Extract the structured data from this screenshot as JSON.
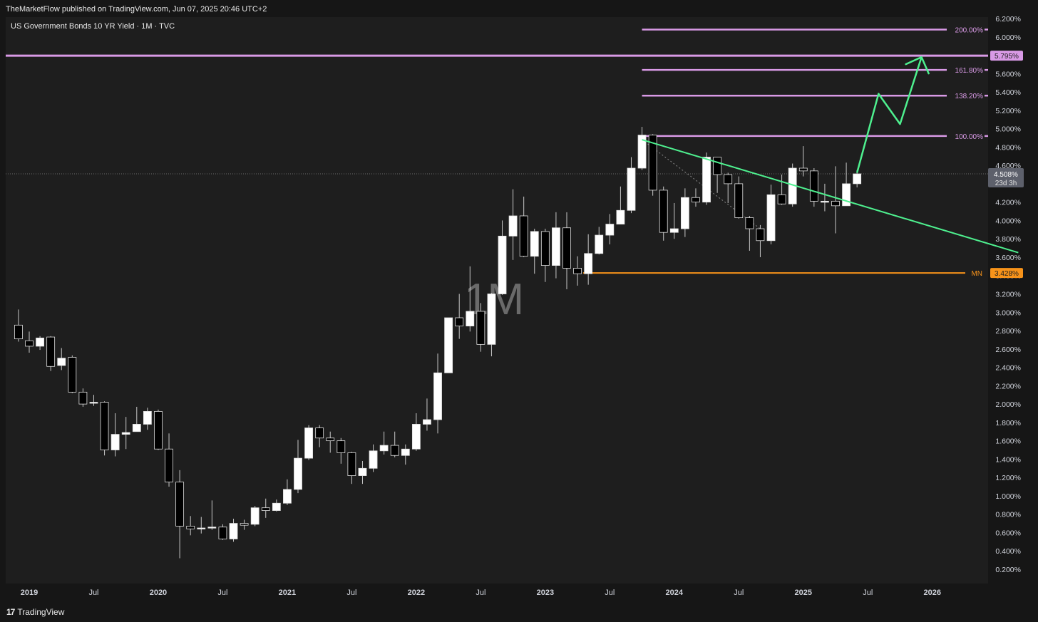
{
  "header": {
    "published": "TheMarketFlow published on TradingView.com, Jun 07, 2025 20:46 UTC+2"
  },
  "symbol": {
    "title": "US Government Bonds 10 YR Yield · 1M · TVC"
  },
  "watermark": "1M",
  "footer": {
    "brand": "TradingView"
  },
  "colors": {
    "background": "#1e1e1e",
    "candle_up": "#ffffff",
    "candle_down": "#000000",
    "fib": "#d99ae6",
    "trendline": "#4ef08f",
    "support": "#f7931a"
  },
  "chart_data": {
    "type": "candlestick",
    "title": "US Government Bonds 10 YR Yield · 1M · TVC",
    "ylim": [
      0.1,
      6.2
    ],
    "y_ticks": [
      "6.200%",
      "6.000%",
      "5.800%",
      "5.600%",
      "5.400%",
      "5.200%",
      "5.000%",
      "4.800%",
      "4.600%",
      "4.400%",
      "4.200%",
      "4.000%",
      "3.800%",
      "3.600%",
      "3.400%",
      "3.200%",
      "3.000%",
      "2.800%",
      "2.600%",
      "2.400%",
      "2.200%",
      "2.000%",
      "1.800%",
      "1.600%",
      "1.400%",
      "1.200%",
      "1.000%",
      "0.800%",
      "0.600%",
      "0.400%",
      "0.200%"
    ],
    "x_ticks": [
      {
        "label": "2019",
        "year": true
      },
      {
        "label": "Jul",
        "year": false
      },
      {
        "label": "2020",
        "year": true
      },
      {
        "label": "Jul",
        "year": false
      },
      {
        "label": "2021",
        "year": true
      },
      {
        "label": "Jul",
        "year": false
      },
      {
        "label": "2022",
        "year": true
      },
      {
        "label": "Jul",
        "year": false
      },
      {
        "label": "2023",
        "year": true
      },
      {
        "label": "Jul",
        "year": false
      },
      {
        "label": "2024",
        "year": true
      },
      {
        "label": "Jul",
        "year": false
      },
      {
        "label": "2025",
        "year": true
      },
      {
        "label": "Jul",
        "year": false
      },
      {
        "label": "2026",
        "year": true
      }
    ],
    "candles": [
      {
        "d": "2018-12",
        "o": 2.86,
        "h": 3.03,
        "l": 2.68,
        "c": 2.71
      },
      {
        "d": "2019-01",
        "o": 2.69,
        "h": 2.79,
        "l": 2.56,
        "c": 2.63
      },
      {
        "d": "2019-02",
        "o": 2.63,
        "h": 2.74,
        "l": 2.59,
        "c": 2.72
      },
      {
        "d": "2019-03",
        "o": 2.73,
        "h": 2.74,
        "l": 2.36,
        "c": 2.41
      },
      {
        "d": "2019-04",
        "o": 2.42,
        "h": 2.61,
        "l": 2.37,
        "c": 2.5
      },
      {
        "d": "2019-05",
        "o": 2.51,
        "h": 2.53,
        "l": 2.12,
        "c": 2.13
      },
      {
        "d": "2019-06",
        "o": 2.13,
        "h": 2.17,
        "l": 1.97,
        "c": 2.0
      },
      {
        "d": "2019-07",
        "o": 2.01,
        "h": 2.1,
        "l": 1.98,
        "c": 2.02
      },
      {
        "d": "2019-08",
        "o": 2.02,
        "h": 2.03,
        "l": 1.44,
        "c": 1.5
      },
      {
        "d": "2019-09",
        "o": 1.5,
        "h": 1.9,
        "l": 1.43,
        "c": 1.67
      },
      {
        "d": "2019-10",
        "o": 1.67,
        "h": 1.86,
        "l": 1.51,
        "c": 1.69
      },
      {
        "d": "2019-11",
        "o": 1.7,
        "h": 1.97,
        "l": 1.7,
        "c": 1.78
      },
      {
        "d": "2019-12",
        "o": 1.78,
        "h": 1.96,
        "l": 1.72,
        "c": 1.92
      },
      {
        "d": "2020-01",
        "o": 1.92,
        "h": 1.94,
        "l": 1.5,
        "c": 1.51
      },
      {
        "d": "2020-02",
        "o": 1.51,
        "h": 1.68,
        "l": 1.1,
        "c": 1.15
      },
      {
        "d": "2020-03",
        "o": 1.15,
        "h": 1.28,
        "l": 0.32,
        "c": 0.67
      },
      {
        "d": "2020-04",
        "o": 0.67,
        "h": 0.78,
        "l": 0.57,
        "c": 0.64
      },
      {
        "d": "2020-05",
        "o": 0.64,
        "h": 0.77,
        "l": 0.59,
        "c": 0.65
      },
      {
        "d": "2020-06",
        "o": 0.65,
        "h": 0.95,
        "l": 0.63,
        "c": 0.66
      },
      {
        "d": "2020-07",
        "o": 0.66,
        "h": 0.69,
        "l": 0.52,
        "c": 0.53
      },
      {
        "d": "2020-08",
        "o": 0.53,
        "h": 0.75,
        "l": 0.5,
        "c": 0.7
      },
      {
        "d": "2020-09",
        "o": 0.7,
        "h": 0.74,
        "l": 0.63,
        "c": 0.68
      },
      {
        "d": "2020-10",
        "o": 0.69,
        "h": 0.89,
        "l": 0.67,
        "c": 0.87
      },
      {
        "d": "2020-11",
        "o": 0.87,
        "h": 0.97,
        "l": 0.76,
        "c": 0.84
      },
      {
        "d": "2020-12",
        "o": 0.84,
        "h": 0.96,
        "l": 0.83,
        "c": 0.92
      },
      {
        "d": "2021-01",
        "o": 0.92,
        "h": 1.18,
        "l": 0.9,
        "c": 1.07
      },
      {
        "d": "2021-02",
        "o": 1.07,
        "h": 1.61,
        "l": 1.03,
        "c": 1.41
      },
      {
        "d": "2021-03",
        "o": 1.41,
        "h": 1.77,
        "l": 1.39,
        "c": 1.74
      },
      {
        "d": "2021-04",
        "o": 1.74,
        "h": 1.77,
        "l": 1.53,
        "c": 1.63
      },
      {
        "d": "2021-05",
        "o": 1.63,
        "h": 1.7,
        "l": 1.47,
        "c": 1.6
      },
      {
        "d": "2021-06",
        "o": 1.6,
        "h": 1.63,
        "l": 1.35,
        "c": 1.47
      },
      {
        "d": "2021-07",
        "o": 1.47,
        "h": 1.48,
        "l": 1.13,
        "c": 1.22
      },
      {
        "d": "2021-08",
        "o": 1.22,
        "h": 1.38,
        "l": 1.13,
        "c": 1.3
      },
      {
        "d": "2021-09",
        "o": 1.3,
        "h": 1.56,
        "l": 1.26,
        "c": 1.49
      },
      {
        "d": "2021-10",
        "o": 1.49,
        "h": 1.7,
        "l": 1.45,
        "c": 1.55
      },
      {
        "d": "2021-11",
        "o": 1.55,
        "h": 1.7,
        "l": 1.42,
        "c": 1.44
      },
      {
        "d": "2021-12",
        "o": 1.44,
        "h": 1.56,
        "l": 1.34,
        "c": 1.51
      },
      {
        "d": "2022-01",
        "o": 1.51,
        "h": 1.9,
        "l": 1.49,
        "c": 1.78
      },
      {
        "d": "2022-02",
        "o": 1.78,
        "h": 2.06,
        "l": 1.71,
        "c": 1.83
      },
      {
        "d": "2022-03",
        "o": 1.83,
        "h": 2.55,
        "l": 1.68,
        "c": 2.34
      },
      {
        "d": "2022-04",
        "o": 2.34,
        "h": 2.94,
        "l": 2.34,
        "c": 2.94
      },
      {
        "d": "2022-05",
        "o": 2.94,
        "h": 3.2,
        "l": 2.71,
        "c": 2.85
      },
      {
        "d": "2022-06",
        "o": 2.85,
        "h": 3.5,
        "l": 2.79,
        "c": 3.01
      },
      {
        "d": "2022-07",
        "o": 3.01,
        "h": 3.1,
        "l": 2.57,
        "c": 2.65
      },
      {
        "d": "2022-08",
        "o": 2.65,
        "h": 3.21,
        "l": 2.52,
        "c": 3.2
      },
      {
        "d": "2022-09",
        "o": 3.2,
        "h": 4.0,
        "l": 3.19,
        "c": 3.83
      },
      {
        "d": "2022-10",
        "o": 3.83,
        "h": 4.34,
        "l": 3.57,
        "c": 4.05
      },
      {
        "d": "2022-11",
        "o": 4.05,
        "h": 4.26,
        "l": 3.6,
        "c": 3.61
      },
      {
        "d": "2022-12",
        "o": 3.61,
        "h": 3.91,
        "l": 3.42,
        "c": 3.88
      },
      {
        "d": "2023-01",
        "o": 3.88,
        "h": 3.91,
        "l": 3.33,
        "c": 3.51
      },
      {
        "d": "2023-02",
        "o": 3.51,
        "h": 4.09,
        "l": 3.37,
        "c": 3.92
      },
      {
        "d": "2023-03",
        "o": 3.92,
        "h": 4.09,
        "l": 3.25,
        "c": 3.48
      },
      {
        "d": "2023-04",
        "o": 3.48,
        "h": 3.61,
        "l": 3.29,
        "c": 3.42
      },
      {
        "d": "2023-05",
        "o": 3.42,
        "h": 3.85,
        "l": 3.3,
        "c": 3.64
      },
      {
        "d": "2023-06",
        "o": 3.64,
        "h": 3.93,
        "l": 3.63,
        "c": 3.84
      },
      {
        "d": "2023-07",
        "o": 3.84,
        "h": 4.07,
        "l": 3.74,
        "c": 3.96
      },
      {
        "d": "2023-08",
        "o": 3.96,
        "h": 4.37,
        "l": 3.96,
        "c": 4.11
      },
      {
        "d": "2023-09",
        "o": 4.11,
        "h": 4.69,
        "l": 4.08,
        "c": 4.57
      },
      {
        "d": "2023-10",
        "o": 4.57,
        "h": 5.02,
        "l": 4.55,
        "c": 4.93
      },
      {
        "d": "2023-11",
        "o": 4.93,
        "h": 4.94,
        "l": 4.27,
        "c": 4.33
      },
      {
        "d": "2023-12",
        "o": 4.33,
        "h": 4.37,
        "l": 3.78,
        "c": 3.87
      },
      {
        "d": "2024-01",
        "o": 3.87,
        "h": 4.19,
        "l": 3.8,
        "c": 3.91
      },
      {
        "d": "2024-02",
        "o": 3.91,
        "h": 4.35,
        "l": 3.82,
        "c": 4.25
      },
      {
        "d": "2024-03",
        "o": 4.25,
        "h": 4.35,
        "l": 4.15,
        "c": 4.2
      },
      {
        "d": "2024-04",
        "o": 4.2,
        "h": 4.74,
        "l": 4.17,
        "c": 4.69
      },
      {
        "d": "2024-05",
        "o": 4.69,
        "h": 4.64,
        "l": 4.3,
        "c": 4.5
      },
      {
        "d": "2024-06",
        "o": 4.5,
        "h": 4.52,
        "l": 4.19,
        "c": 4.4
      },
      {
        "d": "2024-07",
        "o": 4.4,
        "h": 4.48,
        "l": 4.02,
        "c": 4.03
      },
      {
        "d": "2024-08",
        "o": 4.03,
        "h": 4.05,
        "l": 3.67,
        "c": 3.91
      },
      {
        "d": "2024-09",
        "o": 3.91,
        "h": 3.95,
        "l": 3.6,
        "c": 3.78
      },
      {
        "d": "2024-10",
        "o": 3.78,
        "h": 4.39,
        "l": 3.74,
        "c": 4.28
      },
      {
        "d": "2024-11",
        "o": 4.28,
        "h": 4.5,
        "l": 4.17,
        "c": 4.18
      },
      {
        "d": "2024-12",
        "o": 4.18,
        "h": 4.62,
        "l": 4.15,
        "c": 4.57
      },
      {
        "d": "2025-01",
        "o": 4.57,
        "h": 4.81,
        "l": 4.48,
        "c": 4.54
      },
      {
        "d": "2025-02",
        "o": 4.54,
        "h": 4.57,
        "l": 4.15,
        "c": 4.21
      },
      {
        "d": "2025-03",
        "o": 4.21,
        "h": 4.4,
        "l": 4.1,
        "c": 4.21
      },
      {
        "d": "2025-04",
        "o": 4.21,
        "h": 4.59,
        "l": 3.86,
        "c": 4.16
      },
      {
        "d": "2025-05",
        "o": 4.16,
        "h": 4.63,
        "l": 4.16,
        "c": 4.4
      },
      {
        "d": "2025-06",
        "o": 4.4,
        "h": 4.55,
        "l": 4.36,
        "c": 4.508
      }
    ],
    "fib_levels": [
      {
        "label": "200.00%",
        "value": 6.08,
        "start": "2023-10"
      },
      {
        "label": "161.80%",
        "value": 5.64,
        "start": "2023-10"
      },
      {
        "label": "138.20%",
        "value": 5.36,
        "start": "2023-10"
      },
      {
        "label": "100.00%",
        "value": 4.92,
        "start": "2023-10"
      }
    ],
    "fib_badge": {
      "label": "5.795%",
      "value": 5.795
    },
    "support": {
      "name": "MN",
      "label": "3.428%",
      "value": 3.428,
      "start": "2023-04"
    },
    "price_label": {
      "value_text": "4.508%",
      "countdown": "23d 3h",
      "value": 4.508
    },
    "trendline": {
      "from": {
        "d": "2023-10",
        "v": 4.88
      },
      "to": {
        "d": "2026-09",
        "v": 3.65
      }
    },
    "diag_dotted": {
      "from": {
        "d": "2023-10",
        "v": 4.88
      },
      "to": {
        "d": "2024-09",
        "v": 3.91
      }
    },
    "projection_path": [
      {
        "d": "2025-06",
        "v": 4.52
      },
      {
        "d": "2025-08",
        "v": 5.38
      },
      {
        "d": "2025-10",
        "v": 5.05
      },
      {
        "d": "2025-12",
        "v": 5.78
      }
    ],
    "projection_arrow_tip": {
      "d": "2025-12",
      "v": 5.78
    }
  }
}
